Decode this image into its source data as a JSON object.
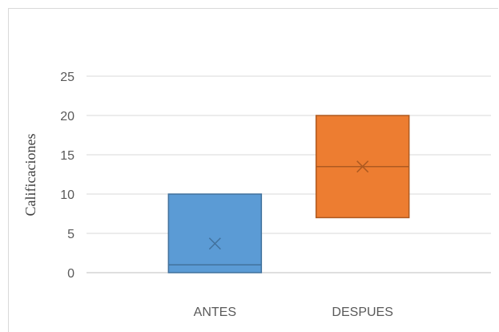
{
  "chart_data": {
    "type": "box",
    "title": "",
    "xlabel": "",
    "ylabel": "Calificaciones",
    "ylim": [
      0,
      25
    ],
    "yticks": [
      0,
      5,
      10,
      15,
      20,
      25
    ],
    "grid": true,
    "categories": [
      "ANTES",
      "DESPUES"
    ],
    "series": [
      {
        "category": "ANTES",
        "q1": 0,
        "median": 1,
        "q3": 10,
        "mean": 3.7,
        "color": "#5b9bd5",
        "stroke": "#41719c"
      },
      {
        "category": "DESPUES",
        "q1": 7,
        "median": 13.5,
        "q3": 20,
        "mean": 13.5,
        "color": "#ed7d31",
        "stroke": "#ae5a21"
      }
    ]
  }
}
